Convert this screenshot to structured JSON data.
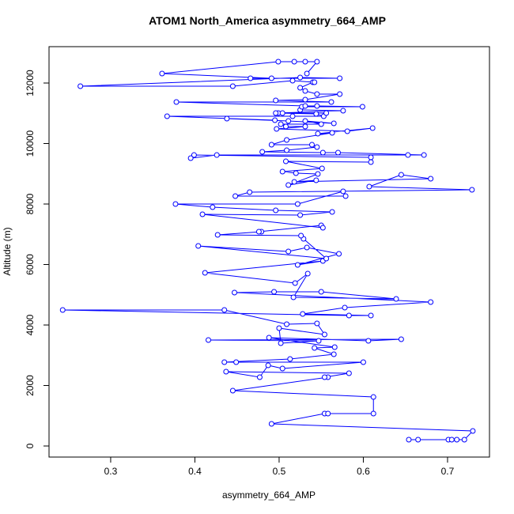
{
  "chart_data": {
    "type": "line",
    "title": "ATOM1 North_America asymmetry_664_AMP",
    "x_label": "asymmetry_664_AMP",
    "y_label": "Altitude (m)",
    "xlim": [
      0.2268,
      0.7498
    ],
    "ylim": [
      -366,
      13203
    ],
    "xticks": [
      0.3,
      0.4,
      0.5,
      0.6,
      0.7
    ],
    "yticks": [
      0,
      2000,
      4000,
      6000,
      8000,
      10000,
      12000
    ],
    "grid": false,
    "series": [
      {
        "name": "asymmetry_664_AMP",
        "color": "#0000ff",
        "x": [
          0.654,
          0.665,
          0.701,
          0.705,
          0.711,
          0.72,
          0.73,
          0.491,
          0.554,
          0.558,
          0.612,
          0.612,
          0.445,
          0.558,
          0.554,
          0.583,
          0.437,
          0.477,
          0.487,
          0.504,
          0.6,
          0.449,
          0.435,
          0.513,
          0.565,
          0.542,
          0.566,
          0.488,
          0.606,
          0.645,
          0.416,
          0.547,
          0.502,
          0.5,
          0.554,
          0.545,
          0.509,
          0.435,
          0.243,
          0.583,
          0.609,
          0.528,
          0.578,
          0.68,
          0.447,
          0.494,
          0.55,
          0.639,
          0.517,
          0.534,
          0.519,
          0.412,
          0.552,
          0.522,
          0.571,
          0.533,
          0.511,
          0.404,
          0.556,
          0.529,
          0.526,
          0.427,
          0.479,
          0.476,
          0.55,
          0.552,
          0.409,
          0.525,
          0.563,
          0.496,
          0.421,
          0.377,
          0.522,
          0.576,
          0.579,
          0.448,
          0.465,
          0.729,
          0.607,
          0.645,
          0.68,
          0.518,
          0.544,
          0.511,
          0.546,
          0.52,
          0.504,
          0.551,
          0.508,
          0.609,
          0.609,
          0.399,
          0.395,
          0.426,
          0.653,
          0.672,
          0.57,
          0.552,
          0.48,
          0.509,
          0.545,
          0.539,
          0.491,
          0.509,
          0.563,
          0.546,
          0.611,
          0.581,
          0.497,
          0.531,
          0.508,
          0.502,
          0.55,
          0.531,
          0.565,
          0.511,
          0.438,
          0.495,
          0.367,
          0.516,
          0.553,
          0.544,
          0.499,
          0.504,
          0.556,
          0.496,
          0.576,
          0.525,
          0.527,
          0.599,
          0.545,
          0.531,
          0.378,
          0.562,
          0.496,
          0.531,
          0.572,
          0.545,
          0.531,
          0.525,
          0.54,
          0.542,
          0.516,
          0.445,
          0.264,
          0.525,
          0.572,
          0.466,
          0.491,
          0.361,
          0.499,
          0.518,
          0.531,
          0.545,
          0.533
        ],
        "values": [
          209,
          209,
          209,
          209,
          209,
          209,
          497,
          732,
          1072,
          1072,
          1072,
          1620,
          1830,
          2275,
          2275,
          2405,
          2458,
          2275,
          2667,
          2562,
          2771,
          2771,
          2771,
          2876,
          3033,
          3242,
          3268,
          3582,
          3477,
          3529,
          3503,
          3477,
          3399,
          3895,
          3686,
          4052,
          4026,
          4497,
          4497,
          4314,
          4314,
          4366,
          4575,
          4758,
          5072,
          5098,
          5098,
          4863,
          4915,
          5699,
          5386,
          5725,
          6118,
          5987,
          6353,
          6562,
          6431,
          6614,
          6196,
          6850,
          6954,
          6981,
          7085,
          7085,
          7294,
          7216,
          7660,
          7634,
          7739,
          7791,
          7895,
          8000,
          8000,
          8418,
          8261,
          8261,
          8392,
          8470,
          8575,
          8967,
          8837,
          8732,
          8784,
          8627,
          8993,
          9019,
          9072,
          9176,
          9411,
          9385,
          9542,
          9620,
          9516,
          9620,
          9620,
          9620,
          9699,
          9699,
          9725,
          9777,
          9882,
          9961,
          9961,
          10118,
          10353,
          10327,
          10510,
          10405,
          10484,
          10562,
          10562,
          10641,
          10641,
          10745,
          10667,
          10745,
          10824,
          10771,
          10902,
          10902,
          10902,
          10980,
          11006,
          11006,
          11006,
          11006,
          11085,
          11111,
          11216,
          11216,
          11242,
          11242,
          11373,
          11373,
          11425,
          11451,
          11634,
          11634,
          11739,
          11843,
          12026,
          12026,
          12078,
          11895,
          11895,
          12183,
          12157,
          12157,
          12157,
          12314,
          12706,
          12706,
          12706,
          12706,
          12314
        ]
      }
    ]
  }
}
